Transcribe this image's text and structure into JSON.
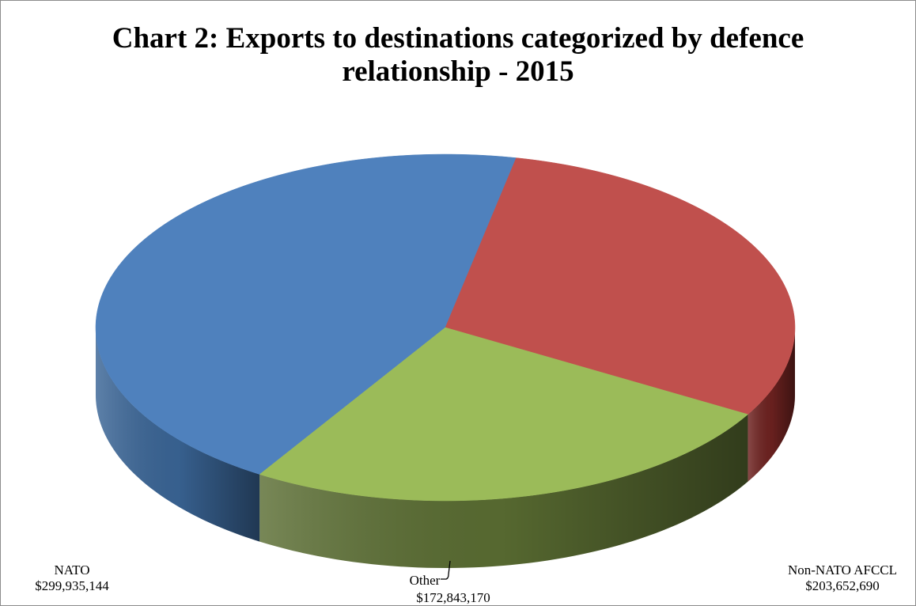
{
  "chart_data": {
    "type": "pie",
    "title_line1": "Chart 2: Exports to destinations categorized by defence",
    "title_line2": "relationship - 2015",
    "slices": [
      {
        "label": "NATO",
        "value": 299935144,
        "value_text": "$299,935,144",
        "color": "#4f81bd",
        "side_color": "#3a6596"
      },
      {
        "label": "Non-NATO AFCCL",
        "value": 203652690,
        "value_text": "$203,652,690",
        "color": "#c0504d",
        "side_color": "#6e2220"
      },
      {
        "label": "Other",
        "value": 172843170,
        "value_text": "$172,843,170",
        "color": "#9bbb59",
        "side_color": "#5a6d32"
      }
    ],
    "legend": "none",
    "style": "3d-pie"
  }
}
